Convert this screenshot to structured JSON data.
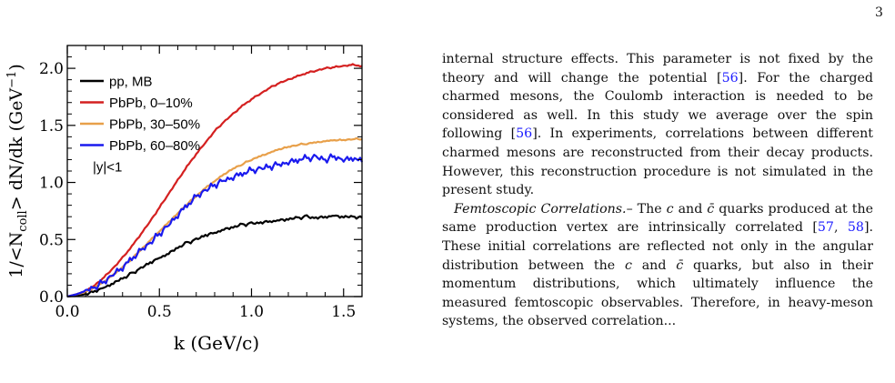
{
  "page_number": "3",
  "chart_data": {
    "type": "line",
    "title": "",
    "xlabel": "k (GeV/c)",
    "ylabel": "1/<N_coll> dN/dk (GeV^-1)",
    "ylabel_parts": {
      "prefix": "1/<N",
      "sub": "coll",
      "mid": "> dN/dk (GeV",
      "sup": "−1",
      "suffix": ")"
    },
    "xlim": [
      0.0,
      1.6
    ],
    "ylim": [
      0.0,
      2.2
    ],
    "xticks": [
      0.0,
      0.5,
      1.0,
      1.5
    ],
    "xtick_labels": [
      "0.0",
      "0.5",
      "1.0",
      "1.5"
    ],
    "yticks": [
      0.0,
      0.5,
      1.0,
      1.5,
      2.0
    ],
    "ytick_labels": [
      "0.0",
      "0.5",
      "1.0",
      "1.5",
      "2.0"
    ],
    "legend_position": "top-left",
    "annotation": "|y|<1",
    "x": [
      0.0,
      0.05,
      0.1,
      0.15,
      0.2,
      0.25,
      0.3,
      0.35,
      0.4,
      0.45,
      0.5,
      0.55,
      0.6,
      0.65,
      0.7,
      0.75,
      0.8,
      0.85,
      0.9,
      0.95,
      1.0,
      1.05,
      1.1,
      1.15,
      1.2,
      1.25,
      1.3,
      1.35,
      1.4,
      1.45,
      1.5,
      1.55,
      1.6
    ],
    "series": [
      {
        "name": "pp, MB",
        "color": "#000000",
        "values": [
          0.0,
          0.01,
          0.02,
          0.05,
          0.08,
          0.12,
          0.16,
          0.2,
          0.25,
          0.3,
          0.34,
          0.38,
          0.43,
          0.47,
          0.5,
          0.54,
          0.56,
          0.59,
          0.61,
          0.63,
          0.64,
          0.65,
          0.66,
          0.67,
          0.68,
          0.69,
          0.7,
          0.69,
          0.7,
          0.71,
          0.7,
          0.7,
          0.69
        ]
      },
      {
        "name": "PbPb, 0–10%",
        "color": "#d42020",
        "values": [
          0.0,
          0.02,
          0.05,
          0.1,
          0.17,
          0.25,
          0.34,
          0.44,
          0.55,
          0.66,
          0.78,
          0.9,
          1.02,
          1.14,
          1.25,
          1.35,
          1.45,
          1.53,
          1.6,
          1.67,
          1.73,
          1.78,
          1.83,
          1.87,
          1.9,
          1.93,
          1.96,
          1.98,
          2.0,
          2.01,
          2.02,
          2.03,
          2.02
        ]
      },
      {
        "name": "PbPb, 30–50%",
        "color": "#e8a04a",
        "values": [
          0.0,
          0.02,
          0.04,
          0.08,
          0.13,
          0.19,
          0.26,
          0.33,
          0.41,
          0.49,
          0.57,
          0.65,
          0.73,
          0.81,
          0.88,
          0.95,
          1.01,
          1.07,
          1.12,
          1.16,
          1.2,
          1.23,
          1.26,
          1.29,
          1.31,
          1.33,
          1.34,
          1.35,
          1.36,
          1.37,
          1.37,
          1.38,
          1.38
        ]
      },
      {
        "name": "PbPb, 60–80%",
        "color": "#1a1aee",
        "values": [
          0.0,
          0.02,
          0.05,
          0.08,
          0.13,
          0.2,
          0.26,
          0.33,
          0.4,
          0.47,
          0.55,
          0.63,
          0.72,
          0.8,
          0.87,
          0.93,
          0.98,
          1.02,
          1.05,
          1.08,
          1.1,
          1.12,
          1.14,
          1.16,
          1.18,
          1.2,
          1.21,
          1.22,
          1.2,
          1.23,
          1.2,
          1.22,
          1.18
        ]
      }
    ]
  },
  "text": {
    "p1_part1": "internal structure effects. This parameter is not fixed by the theory and will change the potential [",
    "cite_56a": "56",
    "p1_part2": "]. For the charged charmed mesons, the Coulomb interaction is needed to be considered as well. In this study we average over the spin following [",
    "cite_56b": "56",
    "p1_part3": "]. In experiments, correlations between different charmed mesons are reconstructed from their decay products. However, this reconstruction procedure is not simulated in the present study.",
    "p2_heading": "Femtoscopic Correlations.",
    "p2_part1": "– The ",
    "c": "c",
    "and_word": " and ",
    "cbar": "c̄",
    "p2_part2": " quarks produced at the same production vertex are intrinsically correlated [",
    "cite_57": "57",
    "cite_sep": ", ",
    "cite_58": "58",
    "p2_part3": "]. These initial correlations are reflected not only in the angular distribution between the ",
    "p2_part4": " quarks, but also in their momentum distributions, which ultimately influence the measured femtoscopic observables. Therefore, in heavy-meson systems, the observed correlation... "
  }
}
